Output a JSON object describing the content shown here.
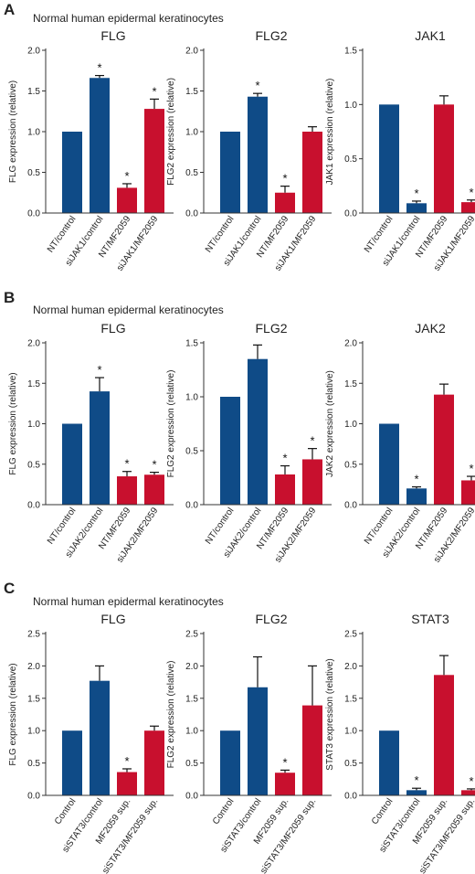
{
  "colors": {
    "blue": "#0f4b87",
    "red": "#c8102e",
    "axis": "#333333",
    "text": "#222222"
  },
  "panels": [
    {
      "letter": "A",
      "subtitle": "Normal human epidermal keratinocytes"
    },
    {
      "letter": "B",
      "subtitle": "Normal human epidermal keratinocytes"
    },
    {
      "letter": "C",
      "subtitle": "Normal human epidermal keratinocytes"
    }
  ],
  "chart_data": [
    {
      "panel": "A",
      "type": "bar",
      "title": "FLG",
      "ylabel": "FLG expression (relative)",
      "ylim": [
        0,
        2.0
      ],
      "yticks": [
        "0.0",
        "0.5",
        "1.0",
        "1.5",
        "2.0"
      ],
      "categories": [
        "NT/control",
        "siJAK1/control",
        "NT/MF2059",
        "siJAK1/MF2059"
      ],
      "values": [
        1.0,
        1.66,
        0.31,
        1.28
      ],
      "errors": [
        0,
        0.03,
        0.05,
        0.12
      ],
      "significant": [
        false,
        true,
        true,
        true
      ],
      "bar_colors": [
        "blue",
        "blue",
        "red",
        "red"
      ]
    },
    {
      "panel": "A",
      "type": "bar",
      "title": "FLG2",
      "ylabel": "FLG2 expression (relative)",
      "ylim": [
        0,
        2.0
      ],
      "yticks": [
        "0.0",
        "0.5",
        "1.0",
        "1.5",
        "2.0"
      ],
      "categories": [
        "NT/control",
        "siJAK1/control",
        "NT/MF2059",
        "siJAK1/MF2059"
      ],
      "values": [
        1.0,
        1.43,
        0.25,
        1.0
      ],
      "errors": [
        0,
        0.04,
        0.08,
        0.06
      ],
      "significant": [
        false,
        true,
        true,
        false
      ],
      "bar_colors": [
        "blue",
        "blue",
        "red",
        "red"
      ]
    },
    {
      "panel": "A",
      "type": "bar",
      "title": "JAK1",
      "ylabel": "JAK1 expression (relative)",
      "ylim": [
        0,
        1.5
      ],
      "yticks": [
        "0.0",
        "0.5",
        "1.0",
        "1.5"
      ],
      "categories": [
        "NT/control",
        "siJAK1/control",
        "NT/MF2059",
        "siJAK1/MF2059"
      ],
      "values": [
        1.0,
        0.09,
        1.0,
        0.1
      ],
      "errors": [
        0,
        0.02,
        0.08,
        0.02
      ],
      "significant": [
        false,
        true,
        false,
        true
      ],
      "bar_colors": [
        "blue",
        "blue",
        "red",
        "red"
      ]
    },
    {
      "panel": "B",
      "type": "bar",
      "title": "FLG",
      "ylabel": "FLG expression (relative)",
      "ylim": [
        0,
        2.0
      ],
      "yticks": [
        "0.0",
        "0.5",
        "1.0",
        "1.5",
        "2.0"
      ],
      "categories": [
        "NT/control",
        "siJAK2/control",
        "NT/MF2059",
        "siJAK2/MF2059"
      ],
      "values": [
        1.0,
        1.4,
        0.35,
        0.37
      ],
      "errors": [
        0,
        0.17,
        0.06,
        0.03
      ],
      "significant": [
        false,
        true,
        true,
        true
      ],
      "bar_colors": [
        "blue",
        "blue",
        "red",
        "red"
      ]
    },
    {
      "panel": "B",
      "type": "bar",
      "title": "FLG2",
      "ylabel": "FLG2 expression (relative)",
      "ylim": [
        0,
        1.5
      ],
      "yticks": [
        "0.0",
        "0.5",
        "1.0",
        "1.5"
      ],
      "categories": [
        "NT/control",
        "siJAK2/control",
        "NT/MF2059",
        "siJAK2/MF2059"
      ],
      "values": [
        1.0,
        1.35,
        0.28,
        0.42
      ],
      "errors": [
        0,
        0.13,
        0.08,
        0.1
      ],
      "significant": [
        false,
        false,
        true,
        true
      ],
      "bar_colors": [
        "blue",
        "blue",
        "red",
        "red"
      ]
    },
    {
      "panel": "B",
      "type": "bar",
      "title": "JAK2",
      "ylabel": "JAK2 expression (relative)",
      "ylim": [
        0,
        2.0
      ],
      "yticks": [
        "0.0",
        "0.5",
        "1.0",
        "1.5",
        "2.0"
      ],
      "categories": [
        "NT/control",
        "siJAK2/control",
        "NT/MF2059",
        "siJAK2/MF2059"
      ],
      "values": [
        1.0,
        0.2,
        1.36,
        0.3
      ],
      "errors": [
        0,
        0.02,
        0.13,
        0.05
      ],
      "significant": [
        false,
        true,
        false,
        true
      ],
      "bar_colors": [
        "blue",
        "blue",
        "red",
        "red"
      ]
    },
    {
      "panel": "C",
      "type": "bar",
      "title": "FLG",
      "ylabel": "FLG expression (relative)",
      "ylim": [
        0,
        2.5
      ],
      "yticks": [
        "0.0",
        "0.5",
        "1.0",
        "1.5",
        "2.0",
        "2.5"
      ],
      "categories": [
        "Control",
        "siSTAT3/control",
        "MF2059 sup.",
        "siSTAT3/MF2059 sup."
      ],
      "values": [
        1.0,
        1.77,
        0.36,
        1.0
      ],
      "errors": [
        0,
        0.23,
        0.05,
        0.07
      ],
      "significant": [
        false,
        false,
        true,
        false
      ],
      "bar_colors": [
        "blue",
        "blue",
        "red",
        "red"
      ]
    },
    {
      "panel": "C",
      "type": "bar",
      "title": "FLG2",
      "ylabel": "FLG2 expression (relative)",
      "ylim": [
        0,
        2.5
      ],
      "yticks": [
        "0.0",
        "0.5",
        "1.0",
        "1.5",
        "2.0",
        "2.5"
      ],
      "categories": [
        "Control",
        "siSTAT3/control",
        "MF2059 sup.",
        "siSTAT3/MF2059 sup."
      ],
      "values": [
        1.0,
        1.67,
        0.35,
        1.39
      ],
      "errors": [
        0,
        0.47,
        0.04,
        0.61
      ],
      "significant": [
        false,
        false,
        true,
        false
      ],
      "bar_colors": [
        "blue",
        "blue",
        "red",
        "red"
      ]
    },
    {
      "panel": "C",
      "type": "bar",
      "title": "STAT3",
      "ylabel": "STAT3 expression (relative)",
      "ylim": [
        0,
        2.5
      ],
      "yticks": [
        "0.0",
        "0.5",
        "1.0",
        "1.5",
        "2.0",
        "2.5"
      ],
      "categories": [
        "Control",
        "siSTAT3/control",
        "MF2059 sup.",
        "siSTAT3/MF2059 sup."
      ],
      "values": [
        1.0,
        0.08,
        1.86,
        0.08
      ],
      "errors": [
        0,
        0.03,
        0.3,
        0.02
      ],
      "significant": [
        false,
        true,
        false,
        true
      ],
      "bar_colors": [
        "blue",
        "blue",
        "red",
        "red"
      ]
    }
  ]
}
